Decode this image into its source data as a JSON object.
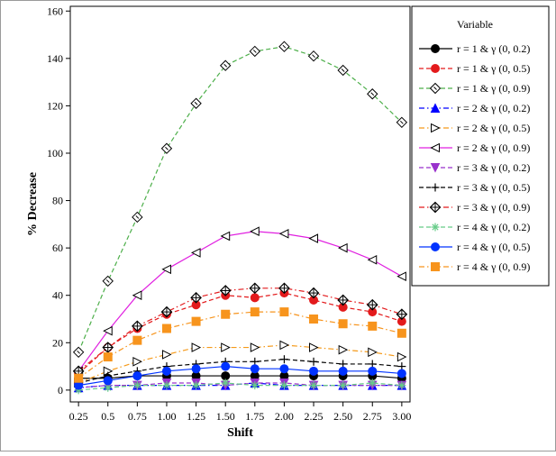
{
  "chart_data": {
    "type": "line",
    "xlabel": "Shift",
    "ylabel": "% Decrease",
    "x": [
      0.25,
      0.5,
      0.75,
      1.0,
      1.25,
      1.5,
      1.75,
      2.0,
      2.25,
      2.5,
      2.75,
      3.0
    ],
    "x_tick_labels": [
      "0.25",
      "0.5",
      "0.75",
      "1.00",
      "1.25",
      "1.50",
      "1.75",
      "2.00",
      "2.25",
      "2.50",
      "2.75",
      "3.00"
    ],
    "y_ticks": [
      0,
      20,
      40,
      60,
      80,
      100,
      120,
      140,
      160
    ],
    "ylim": [
      -5,
      162
    ],
    "xlim": [
      0.18,
      3.07
    ],
    "grid": false,
    "legend": {
      "title": "Variable",
      "placement": "right"
    },
    "series": [
      {
        "name": "r = 1 & γ (0, 0.2)",
        "color": "#000000",
        "dash": "solid",
        "marker": "circle",
        "values": [
          5,
          5,
          6,
          6,
          6,
          6,
          6,
          6,
          6,
          6,
          6,
          5
        ]
      },
      {
        "name": "r = 1 & γ (0, 0.5)",
        "color": "#e31a1c",
        "dash": "dashed",
        "marker": "circle",
        "values": [
          7,
          18,
          26,
          32,
          36,
          40,
          39,
          41,
          38,
          35,
          33,
          29
        ]
      },
      {
        "name": "r = 1 & γ (0, 0.9)",
        "color": "#4daf4a",
        "dash": "dashed",
        "marker": "diamond-open",
        "values": [
          16,
          46,
          73,
          102,
          121,
          137,
          143,
          145,
          141,
          135,
          125,
          113
        ]
      },
      {
        "name": "r = 2 & γ (0, 0.2)",
        "color": "#0000ff",
        "dash": "dashdot",
        "marker": "triangle-up",
        "values": [
          1,
          2,
          2,
          2,
          2,
          2,
          3,
          2,
          2,
          2,
          2,
          2
        ]
      },
      {
        "name": "r = 2 & γ (0, 0.5)",
        "color": "#f59a1a",
        "dash": "dashdot",
        "marker": "triangle-right-open",
        "values": [
          3,
          8,
          12,
          15,
          18,
          18,
          18,
          19,
          18,
          17,
          16,
          14
        ]
      },
      {
        "name": "r = 2 & γ (0, 0.9)",
        "color": "#e020e0",
        "dash": "solid",
        "marker": "triangle-left-open",
        "values": [
          8,
          25,
          40,
          51,
          58,
          65,
          67,
          66,
          64,
          60,
          55,
          48
        ]
      },
      {
        "name": "r = 3 & γ (0, 0.2)",
        "color": "#9932cc",
        "dash": "dashed",
        "marker": "triangle-down",
        "values": [
          1,
          2,
          2,
          3,
          3,
          2,
          3,
          3,
          2,
          2,
          2,
          2
        ]
      },
      {
        "name": "r = 3 & γ (0, 0.5)",
        "color": "#000000",
        "dash": "dashed",
        "marker": "plus",
        "values": [
          3,
          6,
          8,
          10,
          11,
          12,
          12,
          13,
          12,
          11,
          11,
          10
        ]
      },
      {
        "name": "r = 3 & γ (0, 0.9)",
        "color": "#e31a1c",
        "dash": "dashdot",
        "marker": "diamond-cross",
        "values": [
          8,
          18,
          27,
          33,
          39,
          42,
          43,
          43,
          41,
          38,
          36,
          32
        ]
      },
      {
        "name": "r = 4 & γ (0, 0.2)",
        "color": "#66cc88",
        "dash": "dashed",
        "marker": "star",
        "values": [
          0,
          1,
          2,
          2,
          2,
          3,
          2,
          2,
          2,
          2,
          3,
          2
        ]
      },
      {
        "name": "r = 4 & γ (0, 0.5)",
        "color": "#0033ff",
        "dash": "solid",
        "marker": "circle",
        "values": [
          2,
          4,
          6,
          8,
          9,
          10,
          9,
          9,
          8,
          8,
          8,
          7
        ]
      },
      {
        "name": "r = 4 & γ (0, 0.9)",
        "color": "#f7941d",
        "dash": "dashdot",
        "marker": "square",
        "values": [
          5,
          14,
          21,
          26,
          29,
          32,
          33,
          33,
          30,
          28,
          27,
          24
        ]
      }
    ]
  }
}
